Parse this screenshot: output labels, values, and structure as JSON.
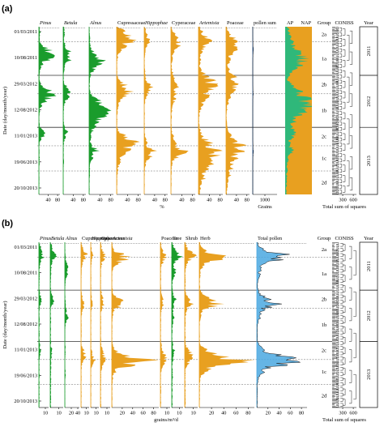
{
  "panels": [
    {
      "tag": "(a)",
      "ylabel": "Date (day/month/year)",
      "dates": [
        "01/03/2011",
        "10/08/2011",
        "29/03/2012",
        "12/08/2012",
        "11/01/2013",
        "19/06/2013",
        "20/10/2013"
      ],
      "taxa": [
        {
          "label": "Pinus",
          "italic": true,
          "color": "#1a9c2c",
          "ticks": [
            "40",
            "80"
          ],
          "max": 90
        },
        {
          "label": "Betula",
          "italic": true,
          "color": "#1a9c2c",
          "ticks": [
            "40",
            "80"
          ],
          "max": 90
        },
        {
          "label": "Alnus",
          "italic": true,
          "color": "#1a9c2c",
          "ticks": [
            "40",
            "80"
          ],
          "max": 90
        },
        {
          "label": "Cupressaceae",
          "italic": false,
          "color": "#e8a020",
          "ticks": [
            "40",
            "80"
          ],
          "max": 90
        },
        {
          "label": "Hippophae",
          "italic": true,
          "color": "#e8a020",
          "ticks": [
            "40",
            "80"
          ],
          "max": 90
        },
        {
          "label": "Cyperaceae",
          "italic": false,
          "color": "#e8a020",
          "ticks": [
            "40",
            "80"
          ],
          "max": 90
        },
        {
          "label": "Artemisia",
          "italic": true,
          "color": "#e8a020",
          "ticks": [
            "40",
            "80"
          ],
          "max": 90
        },
        {
          "label": "Poaceae",
          "italic": false,
          "color": "#e8a020",
          "ticks": [
            "40",
            "80"
          ],
          "max": 90
        },
        {
          "label": "pollen sum",
          "italic": false,
          "color": "#1e4f8c",
          "ticks": [
            "1000"
          ],
          "max": 2000
        }
      ],
      "xaxis_label_pct": "%",
      "xaxis_label_grains": "Grains",
      "composite": {
        "label_ap": "AP",
        "label_nap": "NAP",
        "ap_color": "#2fb87a",
        "nap_color": "#e8a020"
      },
      "group_title": "Group",
      "groups": [
        "2a",
        "1a",
        "2b",
        "1b",
        "2c",
        "1c",
        "2d"
      ],
      "coniss_title": "CONISS",
      "coniss_ticks": [
        "300",
        "600"
      ],
      "coniss_xlabel": "Total sum of squares",
      "year_title": "Year",
      "years": [
        "2011",
        "2012",
        "2013"
      ]
    },
    {
      "tag": "(b)",
      "ylabel": "Date (day/month/year)",
      "dates": [
        "01/03/2011",
        "10/08/2011",
        "29/03/2012",
        "12/08/2012",
        "11/01/2013",
        "19/06/2013",
        "20/10/2013"
      ],
      "taxa": [
        {
          "label": "Pinus",
          "italic": true,
          "color": "#1a9c2c",
          "ticks": [
            "10"
          ],
          "max": 15
        },
        {
          "label": "Betula",
          "italic": true,
          "color": "#1a9c2c",
          "ticks": [
            "10"
          ],
          "max": 15
        },
        {
          "label": "Alnus",
          "italic": true,
          "color": "#1a9c2c",
          "ticks": [
            "20",
            "40"
          ],
          "max": 45
        },
        {
          "label": "Cupressaceae",
          "italic": false,
          "color": "#e8a020",
          "ticks": [
            "10"
          ],
          "max": 15
        },
        {
          "label": "Hippophae",
          "italic": true,
          "color": "#e8a020",
          "ticks": [
            "10"
          ],
          "max": 15
        },
        {
          "label": "Cyperaceae",
          "italic": false,
          "color": "#e8a020",
          "ticks": [
            "10"
          ],
          "max": 15
        },
        {
          "label": "Artemisia",
          "italic": true,
          "color": "#e8a020",
          "ticks": [
            "20",
            "40",
            "60",
            "80"
          ],
          "max": 90
        },
        {
          "label": "Poaceae",
          "italic": false,
          "color": "#e8a020",
          "ticks": [
            "10"
          ],
          "max": 15
        },
        {
          "label": "Tree",
          "italic": false,
          "color": "#1a9c2c",
          "ticks": [
            "10"
          ],
          "max": 15
        },
        {
          "label": "Shrub",
          "italic": false,
          "color": "#e8a020",
          "ticks": [
            "10"
          ],
          "max": 15
        },
        {
          "label": "Herb",
          "italic": false,
          "color": "#e8a020",
          "ticks": [
            "20",
            "40",
            "60",
            "80"
          ],
          "max": 90
        },
        {
          "label": "Total pollen",
          "italic": false,
          "color": "#4aa8e0",
          "ticks": [
            "20",
            "40",
            "60",
            "80"
          ],
          "max": 90
        }
      ],
      "xaxis_label": "grains/m³/d",
      "group_title": "Group",
      "groups": [
        "2a",
        "1a",
        "2b",
        "1b",
        "2c",
        "1c",
        "2d"
      ],
      "coniss_title": "CONISS",
      "coniss_ticks": [
        "300",
        "600"
      ],
      "coniss_xlabel": "Total sum of squares",
      "year_title": "Year",
      "years": [
        "2011",
        "2012",
        "2013"
      ]
    }
  ],
  "chart_data": [
    {
      "type": "area",
      "title": "",
      "ylabel": "Date (day/month/year)",
      "xlabel": "%",
      "orientation": "vertical-stratigraphic",
      "series": [
        {
          "name": "Pinus",
          "profile": [
            2,
            8,
            4,
            3,
            20,
            60,
            80,
            45,
            15,
            5,
            3,
            2,
            10,
            40,
            70,
            55,
            20,
            8,
            3,
            2,
            2,
            6,
            30,
            20,
            5,
            2,
            2,
            3,
            4,
            2,
            2,
            2,
            2,
            2,
            1,
            1
          ]
        },
        {
          "name": "Betula",
          "profile": [
            3,
            6,
            5,
            4,
            10,
            25,
            40,
            30,
            10,
            4,
            3,
            2,
            8,
            30,
            35,
            18,
            6,
            3,
            2,
            2,
            3,
            8,
            18,
            9,
            4,
            2,
            2,
            2,
            3,
            2,
            1,
            1,
            1,
            1,
            1,
            1
          ]
        },
        {
          "name": "Alnus",
          "profile": [
            1,
            2,
            3,
            4,
            6,
            15,
            30,
            55,
            40,
            20,
            8,
            4,
            3,
            3,
            5,
            30,
            60,
            75,
            70,
            50,
            40,
            20,
            12,
            8,
            5,
            20,
            35,
            18,
            8,
            4,
            3,
            3,
            2,
            2,
            2,
            2
          ]
        },
        {
          "name": "Cupressaceae",
          "profile": [
            5,
            40,
            70,
            60,
            35,
            15,
            5,
            3,
            2,
            2,
            2,
            8,
            30,
            60,
            45,
            20,
            10,
            5,
            3,
            3,
            2,
            3,
            10,
            40,
            70,
            60,
            40,
            25,
            15,
            8,
            5,
            3,
            2,
            2,
            2,
            2
          ]
        },
        {
          "name": "Hippophae",
          "profile": [
            3,
            8,
            15,
            25,
            10,
            5,
            3,
            2,
            2,
            3,
            5,
            10,
            20,
            35,
            15,
            8,
            3,
            2,
            2,
            2,
            2,
            2,
            3,
            5,
            10,
            20,
            45,
            30,
            12,
            5,
            3,
            2,
            2,
            2,
            1,
            1
          ]
        },
        {
          "name": "Cyperaceae",
          "profile": [
            2,
            10,
            25,
            40,
            30,
            15,
            8,
            5,
            3,
            5,
            10,
            15,
            20,
            30,
            25,
            18,
            10,
            6,
            4,
            3,
            2,
            3,
            5,
            10,
            15,
            25,
            60,
            30,
            12,
            5,
            3,
            2,
            2,
            2,
            1,
            1
          ]
        },
        {
          "name": "Artemisia",
          "profile": [
            5,
            15,
            30,
            45,
            35,
            20,
            10,
            8,
            6,
            10,
            30,
            55,
            70,
            50,
            40,
            30,
            20,
            10,
            5,
            3,
            3,
            5,
            10,
            20,
            40,
            60,
            80,
            65,
            50,
            45,
            40,
            30,
            20,
            12,
            8,
            5
          ]
        },
        {
          "name": "Poaceae",
          "profile": [
            3,
            10,
            25,
            50,
            60,
            40,
            25,
            15,
            10,
            15,
            30,
            40,
            50,
            35,
            25,
            15,
            10,
            6,
            4,
            3,
            3,
            5,
            10,
            25,
            50,
            70,
            60,
            45,
            35,
            30,
            25,
            18,
            12,
            8,
            5,
            3
          ]
        },
        {
          "name": "pollen sum",
          "profile": [
            2,
            2,
            3,
            8,
            30,
            60,
            20,
            5,
            2,
            2,
            3,
            4,
            6,
            20,
            40,
            12,
            4,
            2,
            2,
            2,
            2,
            2,
            3,
            5,
            10,
            45,
            60,
            25,
            8,
            3,
            2,
            2,
            2,
            2,
            1,
            1
          ]
        }
      ],
      "groups": [
        "2a",
        "1a",
        "2b",
        "1b",
        "2c",
        "1c",
        "2d"
      ],
      "years": [
        "2011",
        "2012",
        "2013"
      ]
    },
    {
      "type": "area",
      "title": "",
      "ylabel": "Date (day/month/year)",
      "xlabel": "grains/m³/d",
      "orientation": "vertical-stratigraphic",
      "series": [
        {
          "name": "Pinus",
          "profile": [
            1,
            3,
            6,
            10,
            4,
            2,
            1,
            1,
            1,
            1,
            1,
            2,
            6,
            3,
            1,
            1,
            1,
            1,
            1,
            1,
            1,
            1,
            2,
            4,
            2,
            1,
            1,
            1,
            1,
            1,
            1,
            1,
            1,
            1,
            1,
            1
          ]
        },
        {
          "name": "Betula",
          "profile": [
            1,
            2,
            4,
            7,
            3,
            2,
            1,
            1,
            1,
            1,
            1,
            2,
            5,
            4,
            1,
            1,
            1,
            1,
            1,
            1,
            1,
            1,
            1,
            3,
            2,
            1,
            1,
            1,
            1,
            1,
            1,
            1,
            1,
            1,
            1,
            1
          ]
        },
        {
          "name": "Alnus",
          "profile": [
            1,
            1,
            2,
            3,
            5,
            8,
            15,
            8,
            3,
            2,
            1,
            1,
            2,
            3,
            4,
            6,
            10,
            4,
            2,
            1,
            1,
            1,
            2,
            3,
            2,
            1,
            1,
            2,
            3,
            1,
            1,
            1,
            1,
            1,
            1,
            1
          ]
        },
        {
          "name": "Cupressaceae",
          "profile": [
            1,
            3,
            8,
            12,
            5,
            2,
            1,
            1,
            1,
            1,
            1,
            2,
            5,
            8,
            4,
            2,
            1,
            1,
            1,
            1,
            1,
            1,
            2,
            6,
            10,
            5,
            2,
            1,
            1,
            1,
            1,
            1,
            1,
            1,
            1,
            1
          ]
        },
        {
          "name": "Hippophae",
          "profile": [
            1,
            1,
            3,
            6,
            2,
            1,
            1,
            1,
            1,
            1,
            1,
            1,
            3,
            5,
            2,
            1,
            1,
            1,
            1,
            1,
            1,
            1,
            1,
            2,
            4,
            8,
            3,
            1,
            1,
            1,
            1,
            1,
            1,
            1,
            1,
            1
          ]
        },
        {
          "name": "Cyperaceae",
          "profile": [
            1,
            2,
            5,
            8,
            4,
            2,
            1,
            1,
            1,
            1,
            1,
            2,
            4,
            6,
            3,
            1,
            1,
            1,
            1,
            1,
            1,
            1,
            2,
            4,
            6,
            10,
            4,
            2,
            1,
            1,
            1,
            1,
            1,
            1,
            1,
            1
          ]
        },
        {
          "name": "Artemisia",
          "profile": [
            1,
            2,
            10,
            45,
            20,
            6,
            2,
            1,
            1,
            1,
            2,
            4,
            15,
            30,
            10,
            4,
            2,
            1,
            1,
            1,
            1,
            1,
            3,
            10,
            30,
            80,
            40,
            12,
            4,
            2,
            1,
            1,
            1,
            1,
            1,
            1
          ]
        },
        {
          "name": "Poaceae",
          "profile": [
            1,
            2,
            4,
            10,
            5,
            2,
            1,
            1,
            1,
            1,
            1,
            2,
            4,
            6,
            3,
            1,
            1,
            1,
            1,
            1,
            1,
            1,
            2,
            4,
            8,
            12,
            5,
            2,
            1,
            1,
            1,
            1,
            1,
            1,
            1,
            1
          ]
        },
        {
          "name": "Tree",
          "profile": [
            1,
            3,
            6,
            12,
            6,
            4,
            6,
            4,
            2,
            1,
            1,
            2,
            6,
            5,
            2,
            2,
            4,
            2,
            1,
            1,
            1,
            1,
            2,
            4,
            3,
            2,
            1,
            1,
            2,
            1,
            1,
            1,
            1,
            1,
            1,
            1
          ]
        },
        {
          "name": "Shrub",
          "profile": [
            1,
            3,
            8,
            12,
            5,
            2,
            1,
            1,
            1,
            1,
            1,
            2,
            6,
            9,
            4,
            2,
            1,
            1,
            1,
            1,
            1,
            1,
            2,
            6,
            10,
            8,
            3,
            1,
            1,
            1,
            1,
            1,
            1,
            1,
            1,
            1
          ]
        },
        {
          "name": "Herb",
          "profile": [
            1,
            3,
            14,
            55,
            25,
            8,
            3,
            2,
            1,
            1,
            2,
            5,
            20,
            38,
            14,
            5,
            2,
            1,
            1,
            1,
            1,
            1,
            4,
            15,
            40,
            85,
            45,
            15,
            5,
            2,
            1,
            1,
            1,
            1,
            1,
            1
          ]
        },
        {
          "name": "Total pollen",
          "profile": [
            1,
            4,
            20,
            70,
            30,
            10,
            8,
            5,
            2,
            1,
            2,
            6,
            28,
            45,
            18,
            8,
            6,
            3,
            1,
            1,
            1,
            1,
            6,
            22,
            50,
            88,
            50,
            18,
            6,
            3,
            1,
            1,
            1,
            1,
            1,
            1
          ]
        }
      ],
      "groups": [
        "2a",
        "1a",
        "2b",
        "1b",
        "2c",
        "1c",
        "2d"
      ],
      "years": [
        "2011",
        "2012",
        "2013"
      ]
    }
  ]
}
